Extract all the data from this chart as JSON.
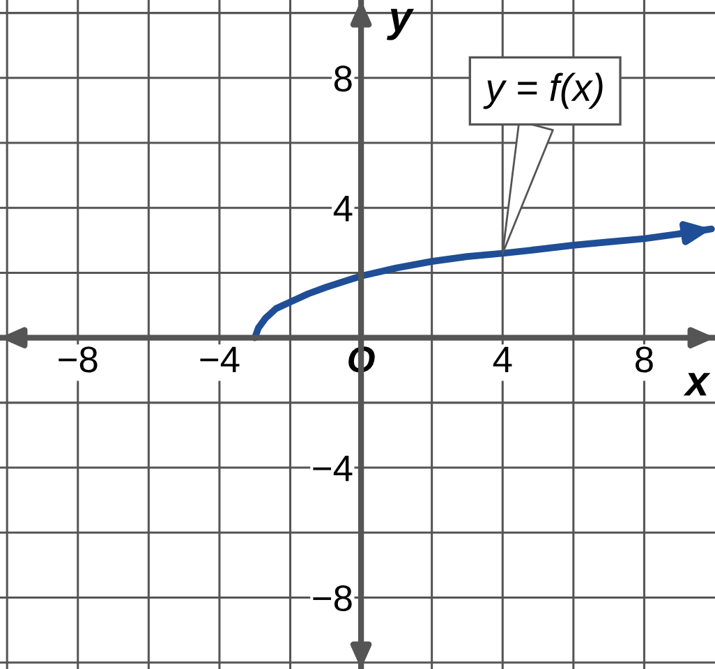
{
  "chart_data": {
    "type": "line",
    "xlabel": "x",
    "ylabel": "y",
    "x": [
      -3,
      -2.9,
      -2.7,
      -2.4,
      -2,
      -1.5,
      -1,
      0,
      1,
      2,
      3,
      4,
      5,
      6,
      7,
      8,
      9,
      9.9
    ],
    "series": [
      {
        "color": "#1f4e96",
        "values": [
          0,
          0.3,
          0.6,
          0.9,
          1.1,
          1.35,
          1.55,
          1.9,
          2.15,
          2.35,
          2.5,
          2.6,
          2.72,
          2.85,
          2.95,
          3.05,
          3.2,
          3.35
        ]
      }
    ],
    "xlim": [
      -10.2,
      10
    ],
    "ylim": [
      -10.2,
      10.4
    ],
    "xticks": [
      {
        "value": -10,
        "label": null
      },
      {
        "value": -8,
        "label": "−8"
      },
      {
        "value": -6,
        "label": null
      },
      {
        "value": -4,
        "label": "−4"
      },
      {
        "value": -2,
        "label": null
      },
      {
        "value": 0,
        "label": "O"
      },
      {
        "value": 2,
        "label": null
      },
      {
        "value": 4,
        "label": "4"
      },
      {
        "value": 6,
        "label": null
      },
      {
        "value": 8,
        "label": "8"
      }
    ],
    "yticks": [
      {
        "value": -10,
        "label": null
      },
      {
        "value": -8,
        "label": "−8"
      },
      {
        "value": -6,
        "label": null
      },
      {
        "value": -4,
        "label": "−4"
      },
      {
        "value": -2,
        "label": null
      },
      {
        "value": 0,
        "label": null
      },
      {
        "value": 2,
        "label": null
      },
      {
        "value": 4,
        "label": "4"
      },
      {
        "value": 6,
        "label": null
      },
      {
        "value": 8,
        "label": "8"
      },
      {
        "value": 10,
        "label": null
      }
    ],
    "annotations": [
      {
        "text": "y = f(x)",
        "x": 4,
        "y": 2.6
      }
    ],
    "grid": true,
    "marker": "none",
    "line_style": "solid"
  }
}
